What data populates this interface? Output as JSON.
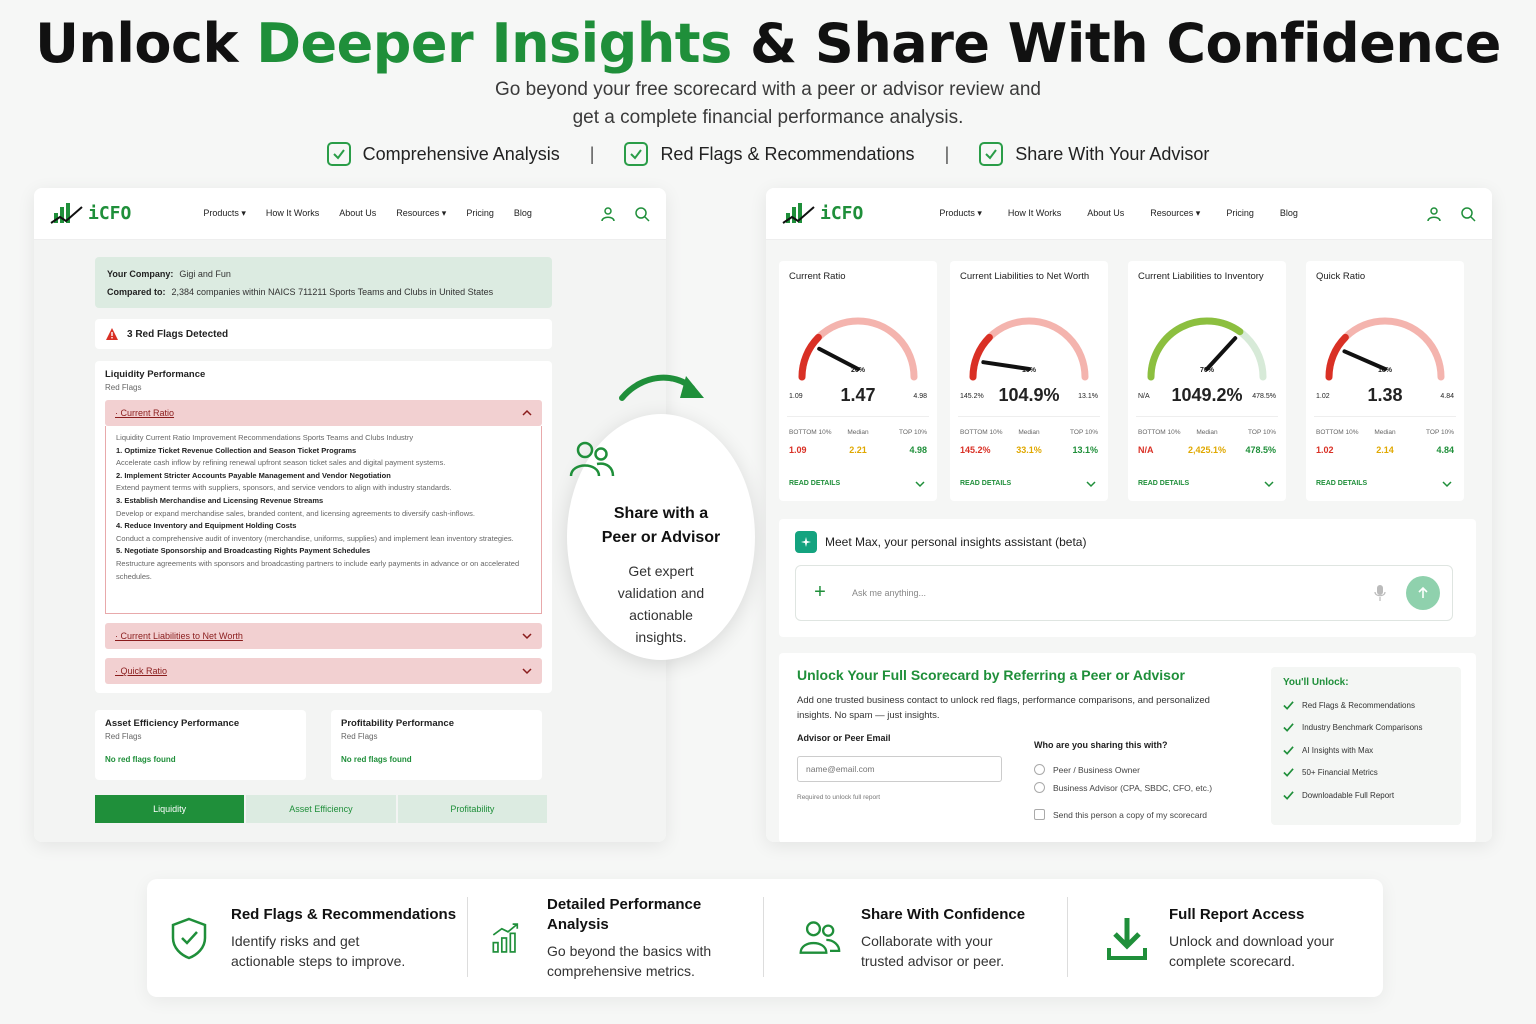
{
  "hero": {
    "title_pre": "Unlock ",
    "title_green": "Deeper Insights",
    "title_post": " & Share With Confidence",
    "subtitle_line1": "Go beyond your free scorecard with a peer or advisor review and",
    "subtitle_line2": "get a complete financial performance analysis.",
    "features": [
      "Comprehensive Analysis",
      "Red Flags & Recommendations",
      "Share With Your Advisor"
    ],
    "separator": "|"
  },
  "nav": {
    "logo": "iCFO",
    "links": [
      "Products ▾",
      "How It Works",
      "About Us",
      "Resources ▾",
      "Pricing",
      "Blog"
    ]
  },
  "left": {
    "company_label": "Your Company:",
    "company_value": "Gigi and Fun",
    "compared_label": "Compared to:",
    "compared_value": "2,384 companies within NAICS 711211 Sports Teams and Clubs in United States",
    "red_flags": "3 Red Flags Detected",
    "liquidity_title": "Liquidity Performance",
    "liquidity_sub": "Red Flags",
    "acc1": "· Current Ratio",
    "acc1_body": [
      {
        "t": "Liquidity Current Ratio Improvement Recommendations Sports Teams and Clubs Industry",
        "h": false
      },
      {
        "t": "1. Optimize Ticket Revenue Collection and Season Ticket Programs",
        "h": true
      },
      {
        "t": "Accelerate cash inflow by refining renewal upfront season ticket sales and digital payment systems.",
        "h": false
      },
      {
        "t": "2. Implement Stricter Accounts Payable Management and Vendor Negotiation",
        "h": true
      },
      {
        "t": "Extend payment terms with suppliers, sponsors, and service vendors to align with industry standards.",
        "h": false
      },
      {
        "t": "3. Establish Merchandise and Licensing Revenue Streams",
        "h": true
      },
      {
        "t": "Develop or expand merchandise sales, branded content, and licensing agreements to diversify cash-inflows.",
        "h": false
      },
      {
        "t": "4. Reduce Inventory and Equipment Holding Costs",
        "h": true
      },
      {
        "t": "Conduct a comprehensive audit of inventory (merchandise, uniforms, supplies) and implement lean inventory strategies.",
        "h": false
      },
      {
        "t": "5. Negotiate Sponsorship and Broadcasting Rights Payment Schedules",
        "h": true
      },
      {
        "t": "Restructure agreements with sponsors and broadcasting partners to include early payments in advance or on accelerated schedules.",
        "h": false
      }
    ],
    "acc2": "· Current Liabilities to Net Worth",
    "acc3": "· Quick Ratio",
    "asset_title": "Asset Efficiency Performance",
    "asset_sub": "Red Flags",
    "asset_ok": "No red flags found",
    "profit_title": "Profitability Performance",
    "profit_sub": "Red Flags",
    "profit_ok": "No red flags found",
    "tabs": [
      "Liquidity",
      "Asset Efficiency",
      "Profitability"
    ]
  },
  "bubble": {
    "title_line1": "Share with a",
    "title_line2": "Peer or Advisor",
    "text_line1": "Get expert",
    "text_line2": "validation and",
    "text_line3": "actionable",
    "text_line4": "insights."
  },
  "metrics": [
    {
      "title": "Current Ratio",
      "pct": "20%",
      "value": "1.47",
      "lo": "1.09",
      "hi": "4.98",
      "fill": 0.2,
      "tone": "red",
      "bottom": "1.09",
      "median": "2.21",
      "top": "4.98"
    },
    {
      "title": "Current Liabilities to Net Worth",
      "pct": "10%",
      "value": "104.9%",
      "lo": "145.2%",
      "hi": "13.1%",
      "fill": 0.1,
      "tone": "red",
      "bottom": "145.2%",
      "median": "33.1%",
      "top": "13.1%"
    },
    {
      "title": "Current Liabilities to Inventory",
      "pct": "70%",
      "value": "1049.2%",
      "lo": "N/A",
      "hi": "478.5%",
      "fill": 0.7,
      "tone": "green",
      "bottom": "N/A",
      "median": "2,425.1%",
      "top": "478.5%"
    },
    {
      "title": "Quick Ratio",
      "pct": "18%",
      "value": "1.38",
      "lo": "1.02",
      "hi": "4.84",
      "fill": 0.18,
      "tone": "red",
      "bottom": "1.02",
      "median": "2.14",
      "top": "4.84"
    }
  ],
  "metric_labels": {
    "bottom": "BOTTOM 10%",
    "median": "Median",
    "top": "TOP 10%",
    "read": "READ DETAILS"
  },
  "max": {
    "title": "Meet Max, your personal insights assistant (beta)",
    "placeholder": "Ask me anything..."
  },
  "unlock": {
    "title": "Unlock Your Full Scorecard by Referring a Peer or Advisor",
    "desc": "Add one trusted business contact to unlock red flags, performance comparisons, and personalized insights. No spam — just insights.",
    "email_label": "Advisor or Peer Email",
    "email_placeholder": "name@email.com",
    "required": "Required to unlock full report",
    "who": "Who are you sharing this with?",
    "opt1": "Peer / Business Owner",
    "opt2": "Business Advisor (CPA, SBDC, CFO, etc.)",
    "opt3": "Send this person a copy of my scorecard",
    "youll_title": "You'll Unlock:",
    "youll_items": [
      "Red Flags & Recommendations",
      "Industry Benchmark Comparisons",
      "AI Insights with Max",
      "50+ Financial Metrics",
      "Downloadable Full Report"
    ]
  },
  "bottom": [
    {
      "title": "Red Flags & Recommendations",
      "desc_line1": "Identify risks and get",
      "desc_line2": "actionable steps to improve.",
      "icon": "shield-check-icon"
    },
    {
      "title": "Detailed Performance Analysis",
      "desc_line1": "Go beyond the basics with",
      "desc_line2": "comprehensive metrics.",
      "icon": "bar-chart-icon"
    },
    {
      "title": "Share With Confidence",
      "desc_line1": "Collaborate with your",
      "desc_line2": "trusted advisor or peer.",
      "icon": "users-icon"
    },
    {
      "title": "Full Report Access",
      "desc_line1": "Unlock and download your",
      "desc_line2": "complete scorecard.",
      "icon": "download-icon"
    }
  ],
  "colors": {
    "brand_green": "#1f8f3a",
    "red": "#d93025",
    "yellow": "#e0a800",
    "pink": "#f2d0d1"
  }
}
